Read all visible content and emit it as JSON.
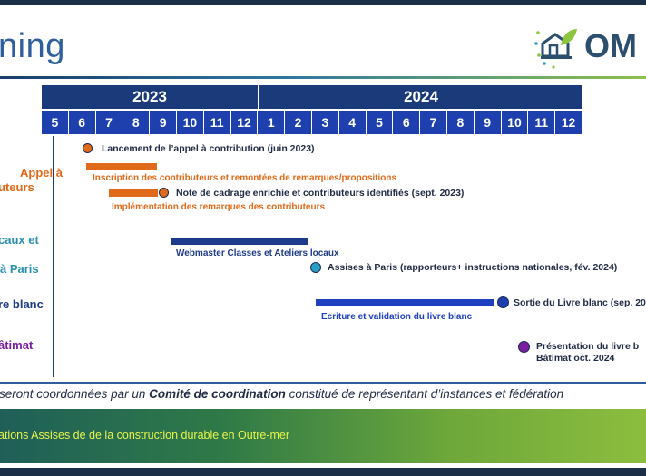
{
  "header": {
    "title": "ning",
    "logo_text": "OM"
  },
  "timeline": {
    "years": [
      "2023",
      "2024"
    ],
    "months_2023": [
      "5",
      "6",
      "7",
      "8",
      "9",
      "10",
      "11",
      "12"
    ],
    "months_2024": [
      "1",
      "2",
      "3",
      "4",
      "5",
      "6",
      "7",
      "8",
      "9",
      "10",
      "11",
      "12"
    ]
  },
  "rows": {
    "r1_label_line1": "Appel à",
    "r1_label_line2": "uteurs",
    "r2_label": "caux et",
    "r3_label": "à Paris",
    "r4_label": "re blanc",
    "r5_label": "âtimat"
  },
  "events": {
    "e1": "Lancement de l’appel à contribution (juin 2023)",
    "b1": "Inscription des contributeurs et remontées de remarques/propositions",
    "e2": "Note de cadrage enrichie et contributeurs identifiés (sept. 2023)",
    "b2": "Implémentation des remarques des contributeurs",
    "b3": "Webmaster Classes et Ateliers locaux",
    "e3": "Assises à Paris (rapporteurs+ instructions nationales, fév. 2024)",
    "b4": "Ecriture et validation du livre blanc",
    "e4": "Sortie du Livre blanc (sep. 20",
    "e5_line1": "Présentation du livre b",
    "e5_line2": "Bâtimat oct. 2024"
  },
  "note": {
    "part1": "seront coordonnées par un ",
    "bold": "Comité de coordination",
    "part2": " constitué de représentant d’instances et fédération"
  },
  "footer": {
    "text": "ations Assises de de la construction durable en Outre-mer"
  },
  "colors": {
    "navy": "#1a3a7a",
    "orange": "#e06a1a",
    "blue": "#1e3a8a",
    "teal": "#2a9fc4",
    "purple": "#7a1fa0",
    "footer_text": "#e8f54a"
  }
}
